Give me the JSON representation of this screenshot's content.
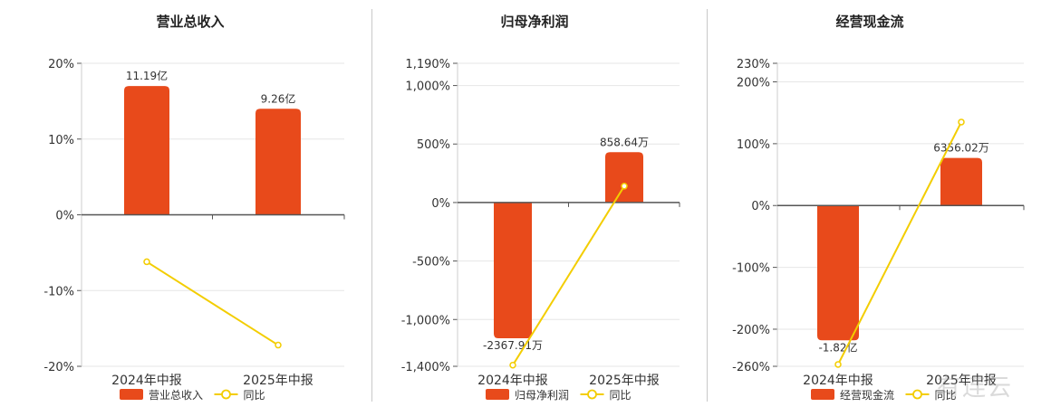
{
  "chart_data": [
    {
      "type": "bar",
      "title": "营业总收入",
      "categories": [
        "2024年中报",
        "2025年中报"
      ],
      "y_ticks": [
        "20%",
        "10%",
        "0%",
        "-10%",
        "-20%"
      ],
      "ylim": [
        -20,
        20
      ],
      "series": [
        {
          "name": "营业总收入",
          "type": "bar",
          "values": [
            17.0,
            14.0
          ],
          "data_labels": [
            "11.19亿",
            "9.26亿"
          ]
        },
        {
          "name": "同比",
          "type": "line",
          "values": [
            -6.2,
            -17.2
          ]
        }
      ],
      "legend_position": "bottom",
      "grid": true
    },
    {
      "type": "bar",
      "title": "归母净利润",
      "categories": [
        "2024年中报",
        "2025年中报"
      ],
      "y_ticks": [
        "1,190%",
        "1,000%",
        "500%",
        "0%",
        "-500%",
        "-1,000%",
        "-1,400%"
      ],
      "ylim": [
        -1400,
        1190
      ],
      "series": [
        {
          "name": "归母净利润",
          "type": "bar",
          "values": [
            -1160,
            430
          ],
          "data_labels": [
            "-2367.91万",
            "858.64万"
          ]
        },
        {
          "name": "同比",
          "type": "line",
          "values": [
            -1390,
            140
          ]
        }
      ],
      "legend_position": "bottom",
      "grid": true
    },
    {
      "type": "bar",
      "title": "经营现金流",
      "categories": [
        "2024年中报",
        "2025年中报"
      ],
      "y_ticks": [
        "230%",
        "200%",
        "100%",
        "0%",
        "-100%",
        "-200%",
        "-260%"
      ],
      "ylim": [
        -260,
        230
      ],
      "series": [
        {
          "name": "经营现金流",
          "type": "bar",
          "values": [
            -218,
            77
          ],
          "data_labels": [
            "-1.82亿",
            "6356.02万"
          ]
        },
        {
          "name": "同比",
          "type": "line",
          "values": [
            -257,
            135
          ]
        }
      ],
      "legend_position": "bottom",
      "grid": true
    }
  ],
  "watermark": "有连云",
  "colors": {
    "bar": "#e84a1b",
    "line": "#f3cd00",
    "grid": "#e6e6e6",
    "axis": "#555555"
  }
}
